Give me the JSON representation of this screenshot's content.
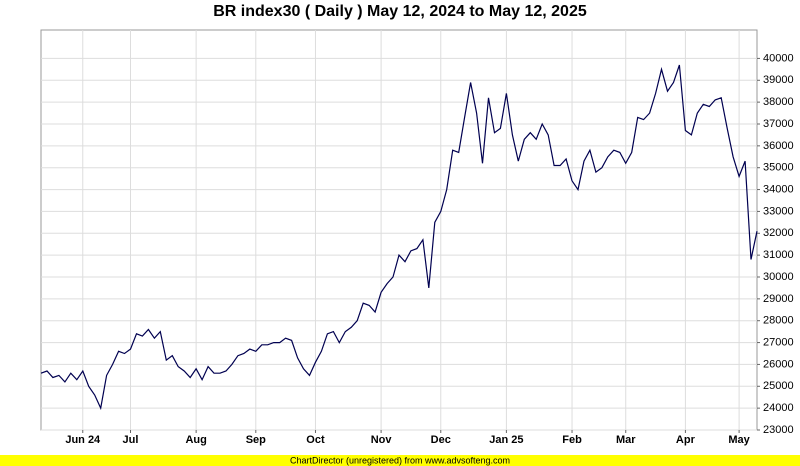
{
  "chart_data": {
    "type": "line",
    "title": "BR index30 ( Daily ) May 12, 2024 to May 12, 2025",
    "footer": "ChartDirector (unregistered) from www.advsofteng.com",
    "categories": [
      null,
      null,
      null,
      null,
      null,
      null,
      null,
      "Jun 24",
      null,
      null,
      null,
      null,
      null,
      null,
      null,
      "Jul",
      null,
      null,
      null,
      null,
      null,
      null,
      null,
      null,
      null,
      null,
      "Aug",
      null,
      null,
      null,
      null,
      null,
      null,
      null,
      null,
      null,
      "Sep",
      null,
      null,
      null,
      null,
      null,
      null,
      null,
      null,
      null,
      "Oct",
      null,
      null,
      null,
      null,
      null,
      null,
      null,
      null,
      null,
      null,
      "Nov",
      null,
      null,
      null,
      null,
      null,
      null,
      null,
      null,
      null,
      "Dec",
      null,
      null,
      null,
      null,
      null,
      null,
      null,
      null,
      null,
      null,
      "Jan 25",
      null,
      null,
      null,
      null,
      null,
      null,
      null,
      null,
      null,
      null,
      "Feb",
      null,
      null,
      null,
      null,
      null,
      null,
      null,
      null,
      "Mar",
      null,
      null,
      null,
      null,
      null,
      null,
      null,
      null,
      null,
      "Apr",
      null,
      null,
      null,
      null,
      null,
      null,
      null,
      null,
      "May",
      null,
      null,
      null
    ],
    "series": [
      {
        "name": "BR index30",
        "color": "#000050",
        "values": [
          25600,
          25700,
          25400,
          25500,
          25200,
          25600,
          25300,
          25700,
          25000,
          24600,
          24000,
          25500,
          26000,
          26600,
          26500,
          26700,
          27400,
          27300,
          27600,
          27200,
          27500,
          26200,
          26400,
          25900,
          25700,
          25400,
          25800,
          25300,
          25900,
          25600,
          25600,
          25700,
          26000,
          26400,
          26500,
          26700,
          26600,
          26900,
          26900,
          27000,
          27000,
          27200,
          27100,
          26300,
          25800,
          25500,
          26100,
          26600,
          27400,
          27500,
          27000,
          27500,
          27700,
          28000,
          28800,
          28700,
          28400,
          29300,
          29700,
          30000,
          31000,
          30700,
          31200,
          31300,
          31700,
          29500,
          32500,
          33000,
          34000,
          35800,
          35700,
          37300,
          38900,
          37500,
          35200,
          38200,
          36600,
          36800,
          38400,
          36500,
          35300,
          36300,
          36600,
          36300,
          37000,
          36500,
          35100,
          35100,
          35400,
          34400,
          34000,
          35300,
          35800,
          34800,
          35000,
          35500,
          35800,
          35700,
          35200,
          35700,
          37300,
          37200,
          37500,
          38400,
          39500,
          38500,
          38900,
          39700,
          36700,
          36500,
          37500,
          37900,
          37800,
          38100,
          38200,
          36800,
          35500,
          34600,
          35300,
          30800,
          32100
        ]
      }
    ],
    "ylim": [
      23000,
      41300
    ],
    "yticks": [
      23000,
      24000,
      25000,
      26000,
      27000,
      28000,
      29000,
      30000,
      31000,
      32000,
      33000,
      34000,
      35000,
      36000,
      37000,
      38000,
      39000,
      40000
    ],
    "grid": true
  }
}
